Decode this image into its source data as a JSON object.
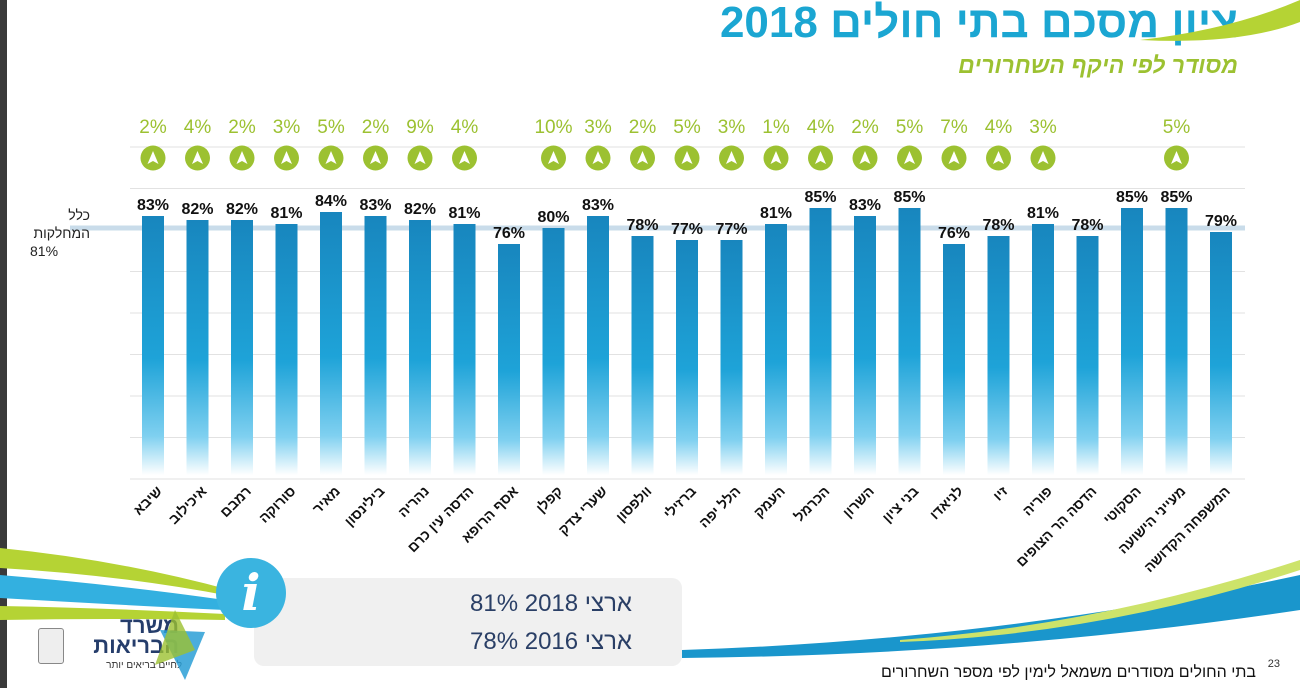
{
  "header": {
    "title": "ציון מסכם בתי חולים 2018",
    "subtitle": "מסודר לפי היקף השחרורים"
  },
  "average": {
    "label": "כלל המחלקות",
    "value": "81%"
  },
  "info": {
    "line1": "ארצי 2018 81%",
    "line2": "ארצי 2016 78%",
    "icon": "info-icon"
  },
  "logo": {
    "name_line1": "משרד",
    "name_line2": "הבריאות",
    "tagline": "לחיים בריאים יותר"
  },
  "footer": {
    "note": "בתי החולים מסודרים משמאל לימין לפי מספר השחרורים",
    "page": "23"
  },
  "colors": {
    "bar": "#1a8bc2",
    "title": "#1ba6d2",
    "accent": "#9cc131",
    "avg_line": "#c9dcea"
  },
  "chart_data": {
    "type": "bar",
    "title": "ציון מסכם בתי חולים 2018",
    "ylabel": "",
    "xlabel": "",
    "ylim": [
      0,
      100
    ],
    "reference_line": {
      "label": "כלל המחלקות",
      "value": 81
    },
    "categories": [
      "שיבא",
      "איכילוב",
      "רמבם",
      "סורוקה",
      "מאיר",
      "בילינסון",
      "נהריה",
      "הדסה עין כרם",
      "אסף הרופא",
      "קפלן",
      "שערי צדק",
      "וולפסון",
      "ברזילי",
      "הלל יפה",
      "העמק",
      "הכרמל",
      "השרון",
      "בני ציון",
      "לניאדו",
      "זיו",
      "פוריה",
      "הדסה הר הצופים",
      "הסקוטי",
      "מעייני הישועה",
      "המשפחה הקדושה"
    ],
    "series": [
      {
        "name": "2018",
        "values": [
          83,
          82,
          82,
          81,
          84,
          83,
          82,
          81,
          76,
          80,
          83,
          78,
          77,
          77,
          81,
          85,
          83,
          85,
          76,
          78,
          81,
          78,
          85,
          85,
          79
        ]
      },
      {
        "name": "increase",
        "values": [
          2,
          4,
          2,
          3,
          5,
          2,
          9,
          4,
          null,
          10,
          3,
          2,
          5,
          3,
          1,
          4,
          2,
          5,
          7,
          4,
          3,
          null,
          null,
          5,
          null
        ]
      }
    ]
  }
}
